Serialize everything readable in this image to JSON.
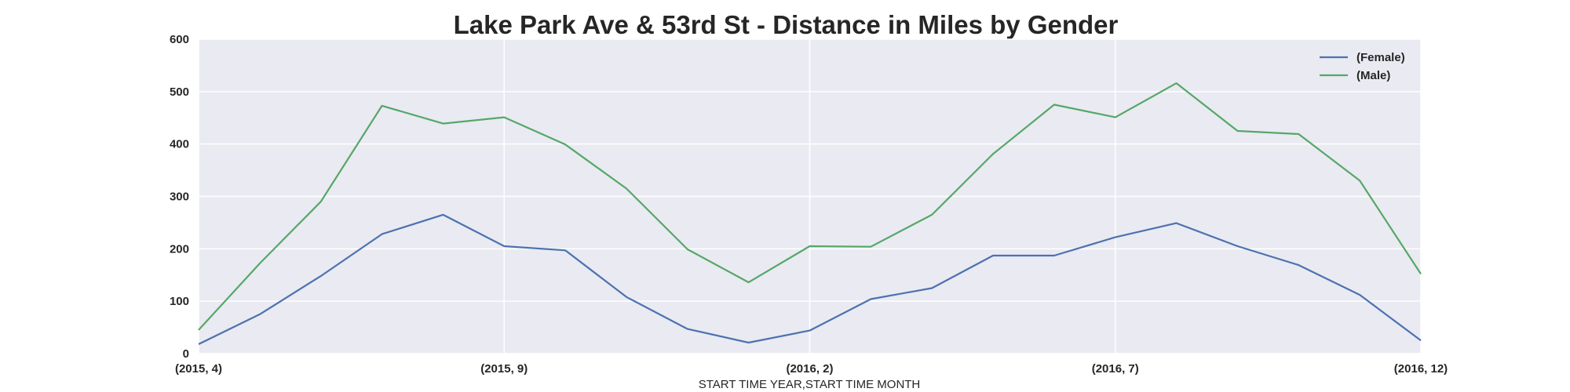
{
  "chart_data": {
    "type": "line",
    "title": "Lake Park Ave & 53rd St - Distance in Miles by Gender",
    "xlabel": "START TIME YEAR,START TIME MONTH",
    "ylabel": "",
    "x": [
      "(2015, 4)",
      "(2015, 5)",
      "(2015, 6)",
      "(2015, 7)",
      "(2015, 8)",
      "(2015, 9)",
      "(2015, 10)",
      "(2015, 11)",
      "(2015, 12)",
      "(2016, 1)",
      "(2016, 2)",
      "(2016, 3)",
      "(2016, 4)",
      "(2016, 5)",
      "(2016, 6)",
      "(2016, 7)",
      "(2016, 8)",
      "(2016, 9)",
      "(2016, 10)",
      "(2016, 11)",
      "(2016, 12)"
    ],
    "xticks": [
      "(2015, 4)",
      "(2015, 9)",
      "(2016, 2)",
      "(2016, 7)",
      "(2016, 12)"
    ],
    "ylim": [
      0,
      600
    ],
    "yticks": [
      "0",
      "100",
      "200",
      "300",
      "400",
      "500",
      "600"
    ],
    "grid": true,
    "legend_position": "top-right",
    "background": "#EAEAF2",
    "series": [
      {
        "name": "(Female)",
        "color": "#4C72B0",
        "values": [
          18,
          75,
          148,
          228,
          265,
          205,
          197,
          108,
          47,
          21,
          44,
          104,
          125,
          187,
          187,
          222,
          249,
          205,
          169,
          112,
          25
        ]
      },
      {
        "name": "(Male)",
        "color": "#55A868",
        "values": [
          45,
          172,
          290,
          473,
          439,
          451,
          399,
          315,
          199,
          136,
          205,
          204,
          265,
          381,
          475,
          451,
          516,
          425,
          419,
          330,
          152
        ]
      }
    ]
  }
}
